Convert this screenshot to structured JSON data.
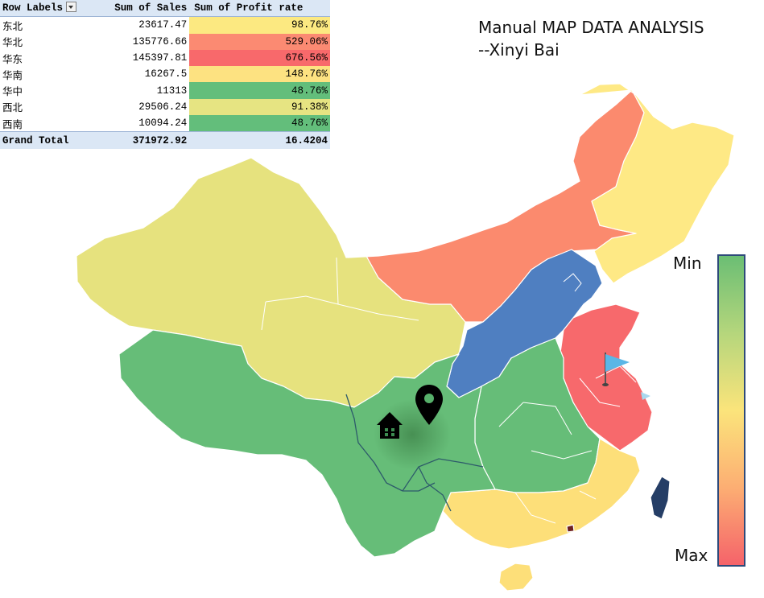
{
  "title": {
    "line1": "Manual MAP DATA ANALYSIS",
    "line2": "--Xinyi Bai"
  },
  "pivot": {
    "headers": {
      "row_labels": "Row Labels",
      "sales": "Sum of Sales",
      "profit": "Sum of Profit rate"
    },
    "rows": [
      {
        "label": "东北",
        "sales": "23617.47",
        "profit": "98.76%",
        "color": "#fce981"
      },
      {
        "label": "华北",
        "sales": "135776.66",
        "profit": "529.06%",
        "color": "#fb8a72"
      },
      {
        "label": "华东",
        "sales": "145397.81",
        "profit": "676.56%",
        "color": "#f8696b"
      },
      {
        "label": "华南",
        "sales": "16267.5",
        "profit": "148.76%",
        "color": "#fde281"
      },
      {
        "label": "华中",
        "sales": "11313",
        "profit": "48.76%",
        "color": "#63be7b"
      },
      {
        "label": "西北",
        "sales": "29506.24",
        "profit": "91.38%",
        "color": "#e6e482"
      },
      {
        "label": "西南",
        "sales": "10094.24",
        "profit": "48.76%",
        "color": "#63be7b"
      }
    ],
    "total": {
      "label": "Grand Total",
      "sales": "371972.92",
      "profit": "16.4204"
    }
  },
  "legend": {
    "min_label": "Min",
    "max_label": "Max",
    "colors": [
      "#6bbe74",
      "#b5d67c",
      "#fbe47b",
      "#fcae73",
      "#f5636a"
    ]
  },
  "chart_data": {
    "type": "choropleth-map",
    "regions": [
      {
        "region": "东北",
        "sales": 23617.47,
        "profit_rate_pct": 98.76,
        "color": "#fee985"
      },
      {
        "region": "华北",
        "sales": 135776.66,
        "profit_rate_pct": 529.06,
        "color": "#fb8a6e"
      },
      {
        "region": "华东",
        "sales": 145397.81,
        "profit_rate_pct": 676.56,
        "color": "#f7696c"
      },
      {
        "region": "华南",
        "sales": 16267.5,
        "profit_rate_pct": 148.76,
        "color": "#fddf79"
      },
      {
        "region": "华中",
        "sales": 11313,
        "profit_rate_pct": 48.76,
        "color": "#66bd78"
      },
      {
        "region": "西北",
        "sales": 29506.24,
        "profit_rate_pct": 91.38,
        "color": "#e6e27e"
      },
      {
        "region": "西南",
        "sales": 10094.24,
        "profit_rate_pct": 48.76,
        "color": "#66bd78"
      }
    ],
    "extra_areas": [
      {
        "area": "beijing-tianjin-hebei-shanxi",
        "color": "#4f7fc1"
      },
      {
        "area": "taiwan",
        "color": "#253e66"
      },
      {
        "area": "macau",
        "color": "#6d1f1f"
      }
    ],
    "legend": {
      "min_label": "Min",
      "max_label": "Max",
      "placement": "right"
    }
  }
}
